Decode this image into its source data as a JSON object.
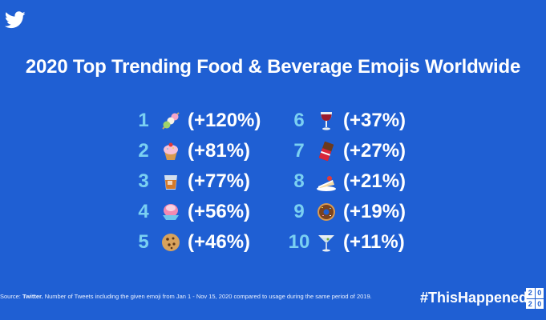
{
  "brand": {
    "logo": "twitter-bird-icon"
  },
  "title": "2020 Top Trending Food & Beverage Emojis Worldwide",
  "items": [
    {
      "rank": "1",
      "emoji": "dango-icon",
      "change": "(+120%)"
    },
    {
      "rank": "2",
      "emoji": "cupcake-icon",
      "change": "(+81%)"
    },
    {
      "rank": "3",
      "emoji": "tumbler-glass-icon",
      "change": "(+77%)"
    },
    {
      "rank": "4",
      "emoji": "shaved-ice-icon",
      "change": "(+56%)"
    },
    {
      "rank": "5",
      "emoji": "cookie-icon",
      "change": "(+46%)"
    },
    {
      "rank": "6",
      "emoji": "wine-glass-icon",
      "change": "(+37%)"
    },
    {
      "rank": "7",
      "emoji": "chocolate-bar-icon",
      "change": "(+27%)"
    },
    {
      "rank": "8",
      "emoji": "shortcake-icon",
      "change": "(+21%)"
    },
    {
      "rank": "9",
      "emoji": "doughnut-icon",
      "change": "(+19%)"
    },
    {
      "rank": "10",
      "emoji": "cocktail-glass-icon",
      "change": "(+11%)"
    }
  ],
  "footer": {
    "source_prefix": "Source: ",
    "source_name": "Twitter.",
    "source_text": " Number of Tweets including the given emoji from Jan 1 - Nov 15, 2020 compared to usage during the same period of 2019.",
    "hashtag": "#ThisHappened",
    "badge": [
      "2",
      "0",
      "2",
      "0"
    ]
  },
  "colors": {
    "background": "#1f5fd3",
    "rank": "#7ad0f2",
    "text": "#ffffff"
  }
}
